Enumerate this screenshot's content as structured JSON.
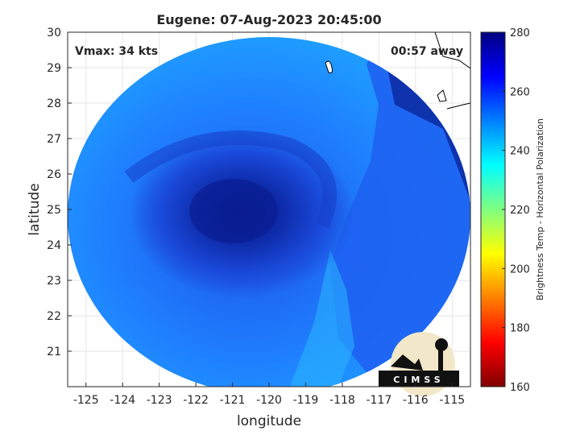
{
  "chart_data": {
    "type": "heatmap",
    "title": "Eugene: 07-Aug-2023 20:45:00",
    "xlabel": "longitude",
    "ylabel": "latitude",
    "xlim": [
      -125.5,
      -114.5
    ],
    "ylim": [
      20,
      30
    ],
    "x_ticks": [
      "-125",
      "-124",
      "-123",
      "-122",
      "-121",
      "-120",
      "-119",
      "-118",
      "-117",
      "-116",
      "-115"
    ],
    "y_ticks": [
      "21",
      "22",
      "23",
      "24",
      "25",
      "26",
      "27",
      "28",
      "29",
      "30"
    ],
    "grid": true,
    "colorbar": {
      "label": "Brightness Temp - Horizontal Polarization",
      "range": [
        160,
        280
      ],
      "ticks": [
        "160",
        "180",
        "200",
        "220",
        "240",
        "260",
        "280"
      ],
      "colormap": "jet"
    },
    "annotations": {
      "vmax": "Vmax: 34 kts",
      "time_offset": "00:57 away"
    },
    "storm_center": {
      "lon": -121.0,
      "lat": 25.0
    },
    "logo_text": "CIMSS"
  },
  "colors": {
    "outer_blue": "#1f8fff",
    "mid_blue": "#1e64f0",
    "core_blue": "#0a2fb0",
    "eye_blue": "#0a1a8a",
    "coastline": "#000000"
  }
}
